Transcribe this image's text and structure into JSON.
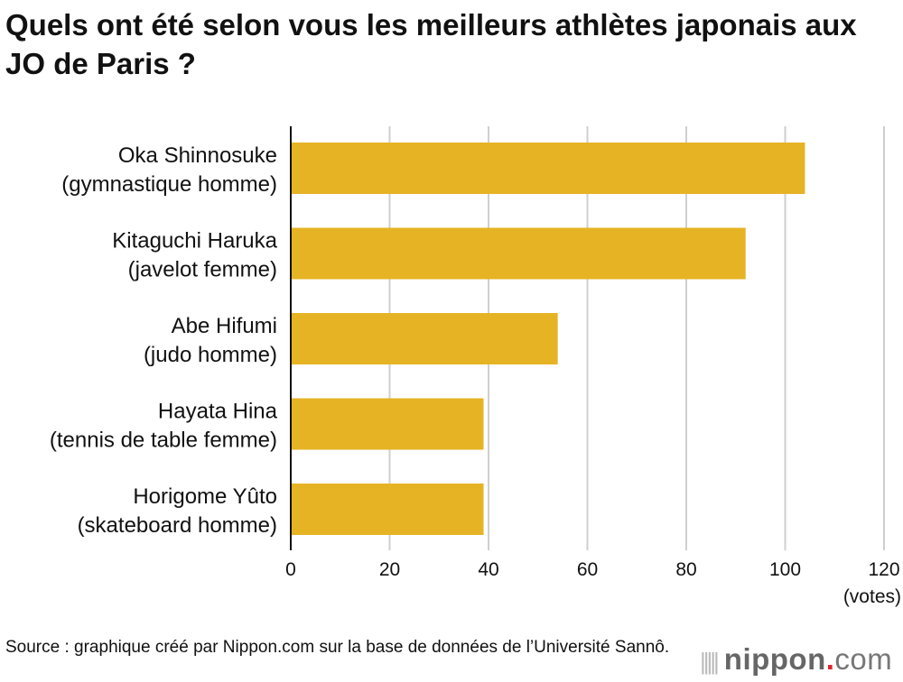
{
  "chart_data": {
    "type": "bar",
    "orientation": "horizontal",
    "title": "Quels ont été selon vous les meilleurs athlètes japonais aux JO de Paris ?",
    "categories": [
      [
        "Oka Shinnosuke",
        "(gymnastique homme)"
      ],
      [
        "Kitaguchi Haruka",
        "(javelot femme)"
      ],
      [
        "Abe Hifumi",
        "(judo homme)"
      ],
      [
        "Hayata Hina",
        "(tennis de table femme)"
      ],
      [
        "Horigome Yûto",
        "(skateboard homme)"
      ]
    ],
    "values": [
      104,
      92,
      54,
      39,
      39
    ],
    "xlabel": "(votes)",
    "xlim": [
      0,
      120
    ],
    "xticks": [
      "0",
      "20",
      "40",
      "60",
      "80",
      "100",
      "120"
    ],
    "grid": true,
    "bar_color": "#e5b324"
  },
  "source": "Source : graphique créé par Nippon.com sur la base de données de l’Université Sannô.",
  "logo": "nippon.com"
}
